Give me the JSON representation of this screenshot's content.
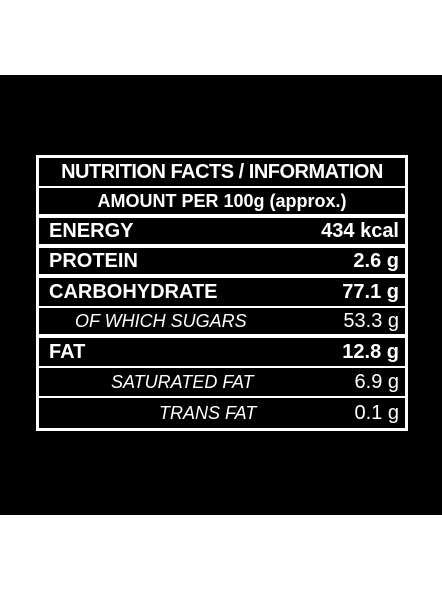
{
  "header": {
    "title": "NUTRITION FACTS / INFORMATION",
    "subtitle": "AMOUNT PER 100g (approx.)"
  },
  "table": {
    "rows": [
      [
        "ENERGY",
        "434 kcal"
      ],
      [
        "PROTEIN",
        "2.6 g"
      ],
      [
        "CARBOHYDRATE",
        "77.1 g"
      ],
      [
        "OF WHICH SUGARS",
        "53.3 g"
      ],
      [
        "FAT",
        "12.8 g"
      ],
      [
        "SATURATED FAT",
        "6.9 g"
      ],
      [
        "TRANS FAT",
        "0.1 g"
      ]
    ]
  }
}
